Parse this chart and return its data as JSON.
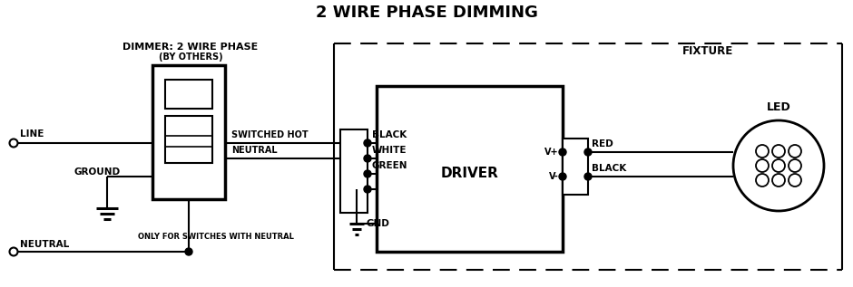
{
  "title": "2 WIRE PHASE DIMMING",
  "bg_color": "#ffffff",
  "dimmer_label": "DIMMER: 2 WIRE PHASE",
  "dimmer_sublabel": "(BY OTHERS)",
  "fixture_label": "FIXTURE",
  "driver_label": "DRIVER",
  "led_label": "LED",
  "line_label": "LINE",
  "ground_label": "GROUND",
  "neutral_label": "NEUTRAL",
  "switched_hot_label": "SWITCHED HOT",
  "neutral_wire_label": "NEUTRAL",
  "black_label": "BLACK",
  "white_label": "WHITE",
  "green_label": "GREEN",
  "gnd_label": "GND",
  "only_for_label": "ONLY FOR SWITCHES WITH NEUTRAL",
  "vplus_label": "V+",
  "vminus_label": "V-",
  "red_label": "RED",
  "black2_label": "BLACK"
}
